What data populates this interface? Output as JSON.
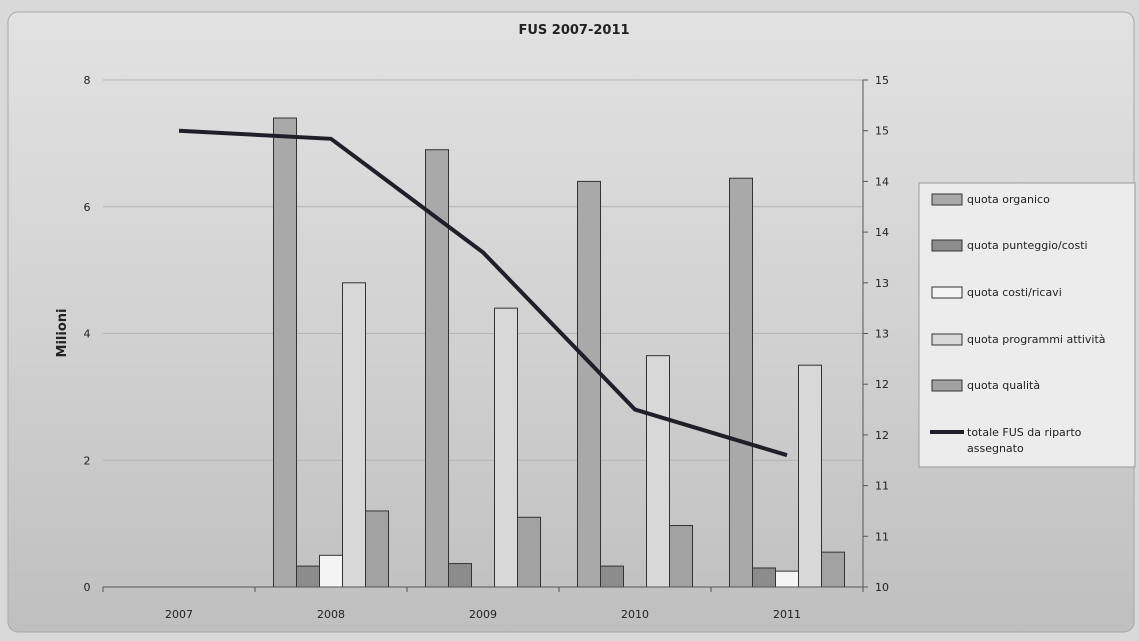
{
  "chart_data": {
    "type": "bar",
    "title": "FUS 2007-2011",
    "ylabel": "Milioni",
    "categories": [
      "2007",
      "2008",
      "2009",
      "2010",
      "2011"
    ],
    "y_left": {
      "lim": [
        0,
        8
      ],
      "ticks": [
        0,
        2,
        4,
        6,
        8
      ]
    },
    "y_right": {
      "lim": [
        10,
        15
      ],
      "tick_values": [
        10,
        10.5,
        11,
        11.5,
        12,
        12.5,
        13,
        13.5,
        14,
        14.5,
        15
      ],
      "tick_labels": [
        "10",
        "11",
        "11",
        "12",
        "12",
        "13",
        "13",
        "14",
        "14",
        "15",
        "15"
      ]
    },
    "grid": true,
    "legend_position": "right",
    "series": [
      {
        "name": "quota organico",
        "kind": "bar",
        "axis": "left",
        "color": "#a9a9a9",
        "values": [
          0,
          7.4,
          6.9,
          6.4,
          6.45
        ]
      },
      {
        "name": "quota punteggio/costi",
        "kind": "bar",
        "axis": "left",
        "color": "#8c8c8c",
        "values": [
          0,
          0.33,
          0.37,
          0.33,
          0.3
        ]
      },
      {
        "name": "quota costi/ricavi",
        "kind": "bar",
        "axis": "left",
        "color": "#f4f4f4",
        "values": [
          0,
          0.5,
          0,
          0,
          0.25
        ]
      },
      {
        "name": "quota programmi attività",
        "kind": "bar",
        "axis": "left",
        "color": "#d8d8d8",
        "values": [
          0,
          4.8,
          4.4,
          3.65,
          3.5
        ]
      },
      {
        "name": "quota qualità",
        "kind": "bar",
        "axis": "left",
        "color": "#a2a2a2",
        "values": [
          0,
          1.2,
          1.1,
          0.97,
          0.55
        ]
      },
      {
        "name": "totale FUS da riparto assegnato",
        "kind": "line",
        "axis": "right",
        "color": "#1f1f2a",
        "values": [
          14.5,
          14.42,
          13.3,
          11.75,
          11.3
        ]
      }
    ]
  }
}
